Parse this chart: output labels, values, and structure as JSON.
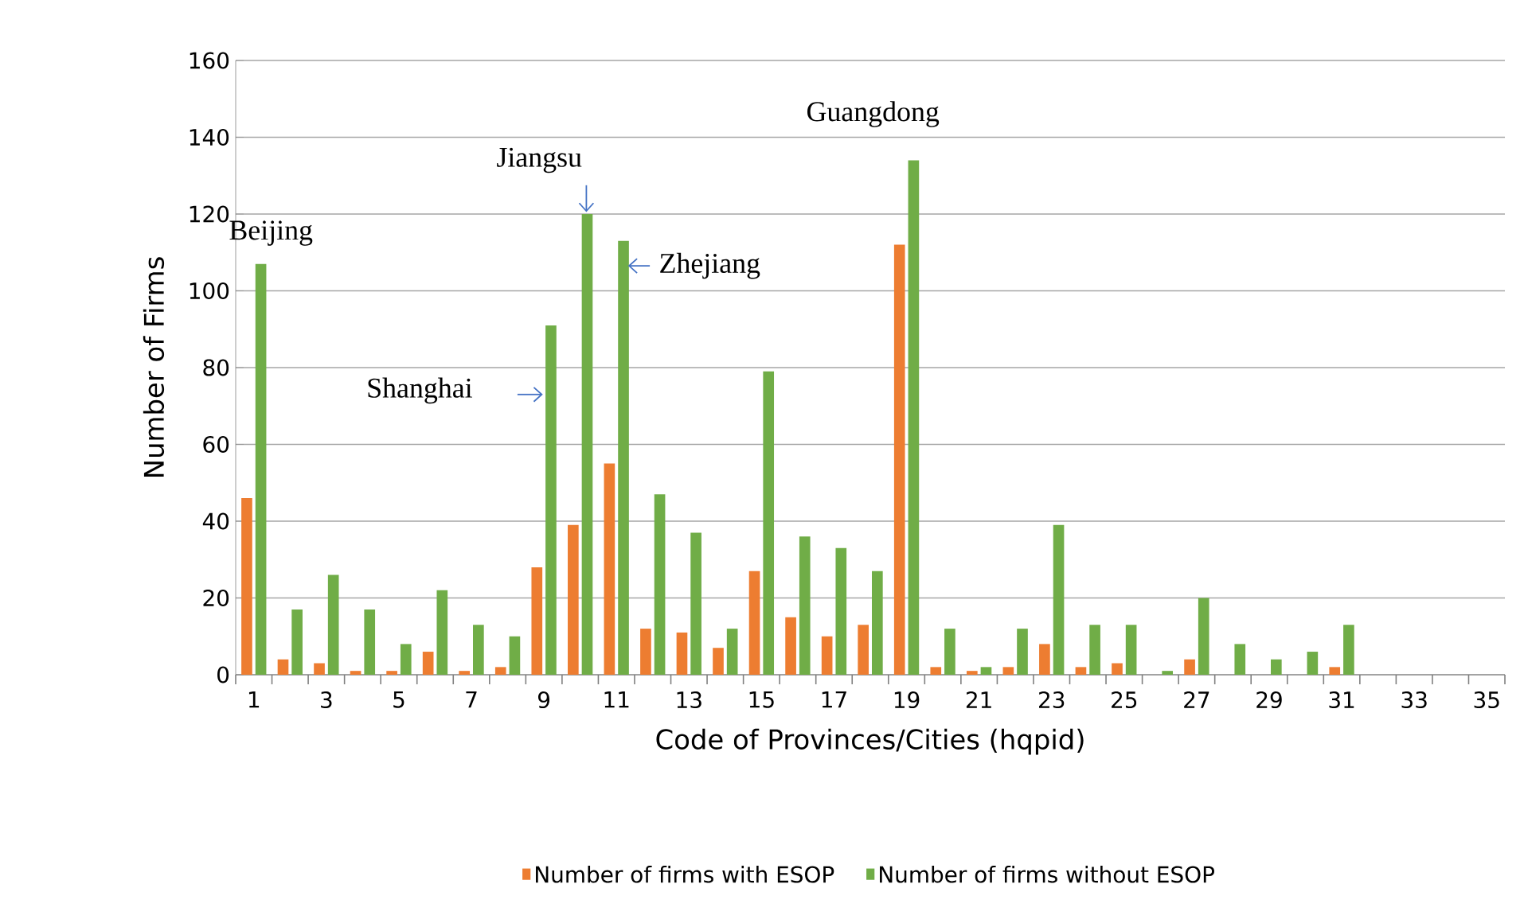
{
  "chart_data": {
    "type": "bar",
    "xlabel": "Code of Provinces/Cities (hqpid)",
    "ylabel": "Number of Firms",
    "categories": [
      "1",
      null,
      "3",
      null,
      "5",
      null,
      "7",
      null,
      "9",
      null,
      "11",
      null,
      "13",
      null,
      "15",
      null,
      "17",
      null,
      "19",
      null,
      "21",
      null,
      "23",
      null,
      "25",
      null,
      "27",
      null,
      "29",
      null,
      "31",
      null,
      "33",
      null,
      "35"
    ],
    "series": [
      {
        "name": "Number of firms with ESOP",
        "color": "#ed7d31",
        "values": [
          46,
          4,
          3,
          1,
          1,
          6,
          1,
          2,
          28,
          39,
          55,
          12,
          11,
          7,
          27,
          15,
          10,
          13,
          112,
          2,
          1,
          2,
          8,
          2,
          3,
          0,
          4,
          0,
          0,
          0,
          2,
          0,
          0,
          0,
          0
        ]
      },
      {
        "name": "Number of firms without ESOP",
        "color": "#70ad47",
        "values": [
          107,
          17,
          26,
          17,
          8,
          22,
          13,
          10,
          91,
          120,
          113,
          47,
          37,
          12,
          79,
          36,
          33,
          27,
          134,
          12,
          2,
          12,
          39,
          13,
          13,
          1,
          20,
          8,
          4,
          6,
          13,
          0,
          0,
          0,
          0
        ]
      }
    ],
    "ylim": [
      0,
      160
    ],
    "yticks": [
      0,
      20,
      40,
      60,
      80,
      100,
      120,
      140,
      160
    ],
    "grid": "y",
    "legend": "bottom",
    "annotations": [
      {
        "text": "Beijing",
        "x": "1",
        "y": 107
      },
      "Jiangsu",
      {
        "text": "Zhejiang",
        "x": "11",
        "y": 113
      },
      {
        "text": "Shanghai",
        "x": "9",
        "y": 73
      },
      {
        "text": "Guangdong",
        "x": "19",
        "y": 134
      }
    ]
  }
}
